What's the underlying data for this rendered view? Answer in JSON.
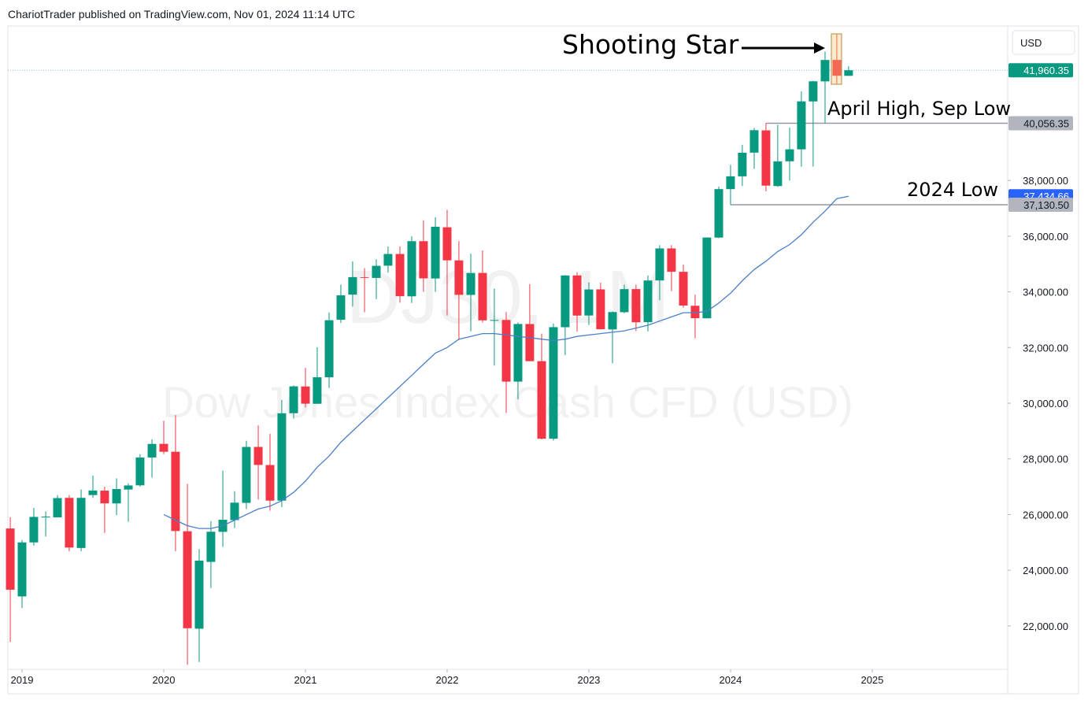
{
  "header": "ChariotTrader published on TradingView.com, Nov 01, 2024 11:14 UTC",
  "chart_data": {
    "type": "candlestick",
    "watermark": "DJ30, 1M",
    "watermark_subtitle": "Dow Jones Index Cash CFD (USD)",
    "currency": "USD",
    "up_color": "#089981",
    "down_color": "#f23645",
    "x": [
      2018.917,
      2019,
      2019.083,
      2019.167,
      2019.25,
      2019.333,
      2019.417,
      2019.5,
      2019.583,
      2019.667,
      2019.75,
      2019.833,
      2019.917,
      2020,
      2020.083,
      2020.167,
      2020.25,
      2020.333,
      2020.417,
      2020.5,
      2020.583,
      2020.667,
      2020.75,
      2020.833,
      2020.917,
      2021,
      2021.083,
      2021.167,
      2021.25,
      2021.333,
      2021.417,
      2021.5,
      2021.583,
      2021.667,
      2021.75,
      2021.833,
      2021.917,
      2022,
      2022.083,
      2022.167,
      2022.25,
      2022.333,
      2022.417,
      2022.5,
      2022.583,
      2022.667,
      2022.75,
      2022.833,
      2022.917,
      2023,
      2023.083,
      2023.167,
      2023.25,
      2023.333,
      2023.417,
      2023.5,
      2023.583,
      2023.667,
      2023.75,
      2023.833,
      2023.917,
      2024,
      2024.083,
      2024.167,
      2024.25,
      2024.333,
      2024.417,
      2024.5,
      2024.583,
      2024.667,
      2024.75,
      2024.833
    ],
    "open": [
      25500,
      23060,
      25000,
      25900,
      25900,
      26600,
      24800,
      26700,
      26860,
      26400,
      26900,
      27050,
      28050,
      28540,
      28256,
      25400,
      21900,
      24300,
      25380,
      25800,
      26420,
      28430,
      27780,
      26500,
      29640,
      30600,
      29980,
      30930,
      33000,
      33900,
      34530,
      34500,
      34940,
      35360,
      33840,
      35820,
      34480,
      36320,
      35130,
      33890,
      34680,
      32980,
      32990,
      30775,
      32845,
      31510,
      28725,
      32730,
      34590,
      33150,
      34090,
      32650,
      33270,
      34100,
      32910,
      34410,
      35560,
      34720,
      33500,
      33050,
      35950,
      37690,
      38150,
      39000,
      39800,
      37800,
      38690,
      39120,
      40840,
      41560,
      42330,
      41760
    ],
    "high": [
      25900,
      25080,
      26240,
      26110,
      26700,
      26700,
      26900,
      27400,
      27000,
      27300,
      27120,
      28170,
      28700,
      29370,
      29570,
      27100,
      24760,
      25760,
      27580,
      26840,
      28650,
      29200,
      28900,
      30120,
      30640,
      31270,
      32010,
      33260,
      34260,
      35090,
      34850,
      35170,
      35630,
      35630,
      36000,
      36570,
      36680,
      36950,
      35820,
      35370,
      35490,
      34120,
      33270,
      32900,
      34280,
      32500,
      32860,
      34600,
      34710,
      34340,
      34330,
      33300,
      34260,
      34260,
      34590,
      35680,
      35680,
      34980,
      33900,
      35960,
      37780,
      38560,
      39280,
      39890,
      40056.35,
      40000,
      39900,
      41200,
      41580,
      42630,
      43270,
      42100
    ],
    "low": [
      21430,
      22640,
      24880,
      25210,
      25900,
      24680,
      24680,
      26600,
      25340,
      25980,
      25740,
      27000,
      27330,
      28170,
      24680,
      20600,
      20700,
      23360,
      24840,
      25520,
      26200,
      26540,
      26140,
      26270,
      29450,
      29850,
      29980,
      30550,
      32880,
      33470,
      33270,
      33740,
      34690,
      33610,
      33600,
      34000,
      34000,
      33150,
      32270,
      32580,
      32900,
      31350,
      29650,
      30140,
      31510,
      28700,
      28660,
      31730,
      32570,
      32810,
      32650,
      31430,
      33230,
      32590,
      32580,
      33700,
      34030,
      33430,
      32330,
      33050,
      35930,
      37130.5,
      37800,
      38420,
      37610,
      37770,
      38000,
      38500,
      38500,
      40056.35,
      41460,
      41760
    ],
    "close": [
      23300,
      25000,
      25916,
      25929,
      26592,
      24815,
      26600,
      26864,
      26403,
      26917,
      27046,
      28051,
      28538,
      28256,
      25409,
      21917,
      24346,
      25383,
      25813,
      26428,
      28430,
      27782,
      26501,
      29638,
      30606,
      29983,
      30932,
      32981,
      33875,
      34529,
      34503,
      34935,
      35361,
      33844,
      35820,
      34484,
      36338,
      35132,
      33893,
      34678,
      32977,
      32990,
      30775,
      32845,
      31510,
      28725,
      32732,
      34589,
      33147,
      34086,
      32657,
      33274,
      34098,
      32908,
      34408,
      35560,
      34722,
      33508,
      33053,
      35951,
      37690,
      38150,
      38996,
      39807,
      37816,
      38686,
      39119,
      40842,
      41563,
      42330,
      41763,
      41960.35
    ],
    "moving_average": {
      "color": "#4a7fc8",
      "values": [
        null,
        null,
        null,
        null,
        null,
        null,
        null,
        null,
        null,
        null,
        null,
        null,
        null,
        26000,
        25800,
        25600,
        25500,
        25500,
        25600,
        25800,
        26000,
        26200,
        26300,
        26500,
        26800,
        27200,
        27700,
        28100,
        28600,
        29000,
        29400,
        29800,
        30200,
        30600,
        31000,
        31400,
        31800,
        32000,
        32300,
        32400,
        32500,
        32500,
        32450,
        32400,
        32350,
        32300,
        32250,
        32300,
        32400,
        32450,
        32500,
        32550,
        32600,
        32700,
        32800,
        32950,
        33100,
        33250,
        33250,
        33300,
        33600,
        33950,
        34400,
        34800,
        35100,
        35450,
        35700,
        36050,
        36500,
        36900,
        37350,
        37434.66
      ]
    },
    "xlim": [
      2018.9,
      2025.956
    ],
    "xticks": [
      2019,
      2020,
      2021,
      2022,
      2023,
      2024,
      2025
    ],
    "ylim": [
      20440,
      43550
    ],
    "yticks": [
      {
        "value": 22000,
        "label": "22,000.00"
      },
      {
        "value": 24000,
        "label": "24,000.00"
      },
      {
        "value": 26000,
        "label": "26,000.00"
      },
      {
        "value": 28000,
        "label": "28,000.00"
      },
      {
        "value": 30000,
        "label": "30,000.00"
      },
      {
        "value": 32000,
        "label": "32,000.00"
      },
      {
        "value": 34000,
        "label": "34,000.00"
      },
      {
        "value": 36000,
        "label": "36,000.00"
      },
      {
        "value": 38000,
        "label": "38,000.00"
      }
    ],
    "price_lines": [
      {
        "value": 41960.35,
        "label": "41,960.35",
        "color": "#089981",
        "style": "dotted"
      },
      {
        "value": 40056.35,
        "label": "40,056.35",
        "color": "#b2b5be",
        "style": "solid"
      },
      {
        "value": 37434.66,
        "label": "37,434.66",
        "color": "#2962ff",
        "style": "none"
      },
      {
        "value": 37130.5,
        "label": "37,130.50",
        "color": "#b2b5be",
        "style": "solid"
      }
    ],
    "annotations": [
      "Shooting Star",
      "April High, Sep Low",
      "2024 Low"
    ]
  }
}
